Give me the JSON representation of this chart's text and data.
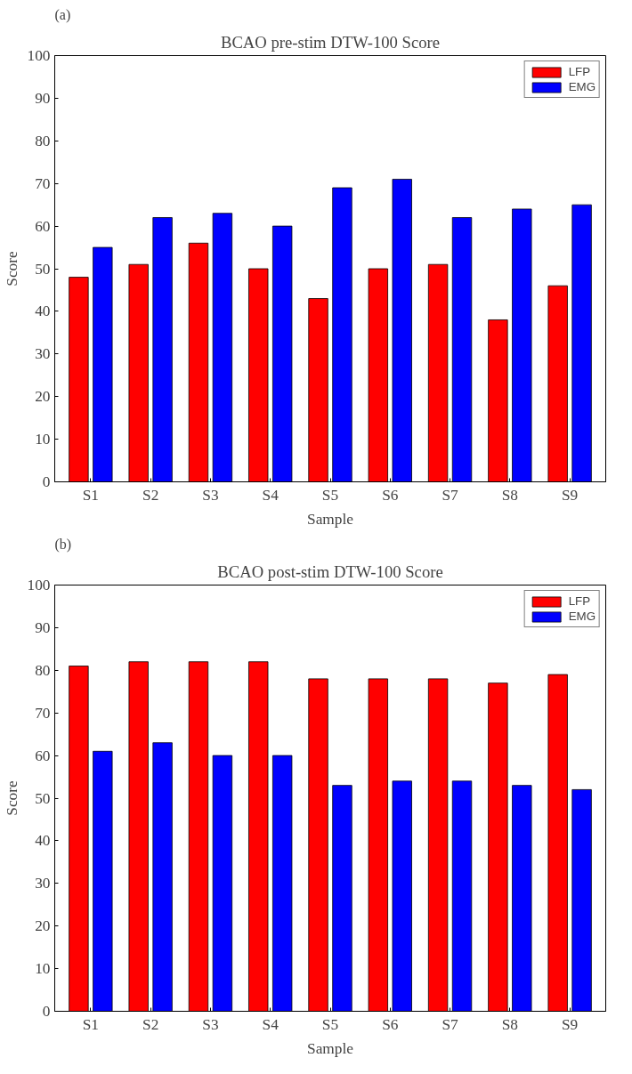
{
  "chart_data": [
    {
      "type": "bar",
      "title": "BCAO pre-stim DTW-100 Score",
      "xlabel": "Sample",
      "ylabel": "Score",
      "annotations": [
        "(a)"
      ],
      "categories": [
        "S1",
        "S2",
        "S3",
        "S4",
        "S5",
        "S6",
        "S7",
        "S8",
        "S9"
      ],
      "series": [
        {
          "name": "LFP",
          "color": "#ff0000",
          "values": [
            48,
            51,
            56,
            50,
            43,
            50,
            51,
            38,
            46
          ]
        },
        {
          "name": "EMG",
          "color": "#0000ff",
          "values": [
            55,
            62,
            63,
            60,
            69,
            71,
            62,
            64,
            65
          ]
        }
      ],
      "ylim": [
        0,
        100
      ],
      "yticks": [
        0,
        10,
        20,
        30,
        40,
        50,
        60,
        70,
        80,
        90,
        100
      ],
      "grid": false,
      "legend": "top right"
    },
    {
      "type": "bar",
      "title": "BCAO post-stim DTW-100 Score",
      "xlabel": "Sample",
      "ylabel": "Score",
      "annotations": [
        "(b)"
      ],
      "categories": [
        "S1",
        "S2",
        "S3",
        "S4",
        "S5",
        "S6",
        "S7",
        "S8",
        "S9"
      ],
      "series": [
        {
          "name": "LFP",
          "color": "#ff0000",
          "values": [
            81,
            82,
            82,
            82,
            78,
            78,
            78,
            77,
            79
          ]
        },
        {
          "name": "EMG",
          "color": "#0000ff",
          "values": [
            61,
            63,
            60,
            60,
            53,
            54,
            54,
            53,
            52
          ]
        }
      ],
      "ylim": [
        0,
        100
      ],
      "yticks": [
        0,
        10,
        20,
        30,
        40,
        50,
        60,
        70,
        80,
        90,
        100
      ],
      "grid": false,
      "legend": "top right"
    }
  ]
}
